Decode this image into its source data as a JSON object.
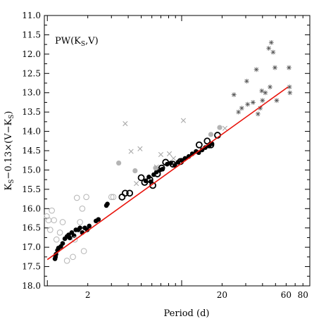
{
  "chart_data": {
    "type": "scatter",
    "panel_label": "PW(K",
    "panel_label_sub": "S",
    "panel_label_tail": ",V)",
    "xlabel": "Period (d)",
    "ylabel_parts": {
      "a": "K",
      "a_sub": "S",
      "b": "−0.13×(V−K",
      "b_sub": "S",
      "c": ")"
    },
    "x_scale": "log",
    "xlim": [
      0.95,
      90
    ],
    "ylim": [
      18.0,
      11.0
    ],
    "y_inverted": true,
    "x_ticks": [
      {
        "value": 2,
        "label": "2"
      },
      {
        "value": 20,
        "label": "20"
      },
      {
        "value": 60,
        "label": "60"
      },
      {
        "value": 80,
        "label": "80"
      }
    ],
    "y_ticks": [
      "11.0",
      "11.5",
      "12.0",
      "12.5",
      "13.0",
      "13.5",
      "14.0",
      "14.5",
      "15.0",
      "15.5",
      "16.0",
      "16.5",
      "17.0",
      "17.5",
      "18.0"
    ],
    "colors": {
      "fit_line": "#e8140c",
      "filled": "#000000",
      "open": "#000000",
      "gray": "#b4b4b4",
      "cross": "#aaaaaa",
      "star": "#555555"
    },
    "fit_line": {
      "x": [
        1.0,
        62.0
      ],
      "y": [
        17.32,
        12.85
      ]
    },
    "series": [
      {
        "marker": "filled-circle",
        "points": [
          [
            1.14,
            17.3
          ],
          [
            1.15,
            17.25
          ],
          [
            1.16,
            17.18
          ],
          [
            1.19,
            17.08
          ],
          [
            1.21,
            17.02
          ],
          [
            1.26,
            16.98
          ],
          [
            1.3,
            16.9
          ],
          [
            1.35,
            16.78
          ],
          [
            1.4,
            16.72
          ],
          [
            1.44,
            16.68
          ],
          [
            1.47,
            16.76
          ],
          [
            1.52,
            16.62
          ],
          [
            1.58,
            16.7
          ],
          [
            1.63,
            16.55
          ],
          [
            1.7,
            16.55
          ],
          [
            1.75,
            16.5
          ],
          [
            1.82,
            16.62
          ],
          [
            1.9,
            16.5
          ],
          [
            1.98,
            16.55
          ],
          [
            2.05,
            16.45
          ],
          [
            2.3,
            16.32
          ],
          [
            2.4,
            16.28
          ],
          [
            2.75,
            15.92
          ],
          [
            2.8,
            15.88
          ],
          [
            5.4,
            15.28
          ],
          [
            5.7,
            15.18
          ],
          [
            5.9,
            15.3
          ],
          [
            6.2,
            15.12
          ],
          [
            6.5,
            15.05
          ],
          [
            6.9,
            15.0
          ],
          [
            7.2,
            14.98
          ],
          [
            7.8,
            14.85
          ],
          [
            8.3,
            14.82
          ],
          [
            8.9,
            14.88
          ],
          [
            9.4,
            14.8
          ],
          [
            10.0,
            14.75
          ],
          [
            10.6,
            14.7
          ],
          [
            11.3,
            14.65
          ],
          [
            12.0,
            14.58
          ],
          [
            12.8,
            14.52
          ],
          [
            13.4,
            14.55
          ],
          [
            14.2,
            14.48
          ],
          [
            15.0,
            14.42
          ],
          [
            16.0,
            14.38
          ],
          [
            16.8,
            14.32
          ]
        ]
      },
      {
        "marker": "open-circle",
        "points": [
          [
            3.6,
            15.7
          ],
          [
            3.8,
            15.6
          ],
          [
            4.1,
            15.6
          ],
          [
            5.0,
            15.2
          ],
          [
            5.3,
            15.32
          ],
          [
            5.8,
            15.25
          ],
          [
            6.1,
            15.4
          ],
          [
            6.6,
            15.1
          ],
          [
            7.1,
            14.95
          ],
          [
            7.6,
            14.8
          ],
          [
            8.6,
            14.85
          ],
          [
            9.8,
            14.78
          ],
          [
            13.5,
            14.35
          ],
          [
            15.5,
            14.25
          ],
          [
            16.5,
            14.35
          ],
          [
            18.5,
            14.1
          ]
        ]
      },
      {
        "marker": "gray-open-circle",
        "points": [
          [
            0.99,
            16.2
          ],
          [
            1.02,
            16.3
          ],
          [
            1.05,
            16.55
          ],
          [
            1.08,
            16.05
          ],
          [
            1.12,
            16.3
          ],
          [
            1.17,
            16.8
          ],
          [
            1.24,
            16.62
          ],
          [
            1.3,
            16.35
          ],
          [
            1.4,
            17.35
          ],
          [
            1.55,
            17.25
          ],
          [
            1.6,
            16.8
          ],
          [
            1.66,
            15.72
          ],
          [
            1.75,
            16.35
          ],
          [
            1.82,
            16.0
          ],
          [
            1.87,
            17.1
          ],
          [
            1.95,
            15.7
          ],
          [
            3.0,
            15.7
          ],
          [
            3.1,
            15.7
          ]
        ]
      },
      {
        "marker": "gray-filled-circle",
        "points": [
          [
            3.4,
            14.82
          ],
          [
            4.5,
            15.02
          ],
          [
            6.4,
            14.95
          ],
          [
            16.5,
            14.08
          ],
          [
            19.2,
            13.9
          ]
        ]
      },
      {
        "marker": "gray-cross",
        "points": [
          [
            3.8,
            13.8
          ],
          [
            4.2,
            14.52
          ],
          [
            4.6,
            15.35
          ],
          [
            4.9,
            14.45
          ],
          [
            6.5,
            14.92
          ],
          [
            7.0,
            14.6
          ],
          [
            8.1,
            14.58
          ],
          [
            8.7,
            14.7
          ],
          [
            10.3,
            13.72
          ],
          [
            21.0,
            13.92
          ]
        ]
      },
      {
        "marker": "star",
        "points": [
          [
            24.5,
            13.05
          ],
          [
            26.5,
            13.5
          ],
          [
            28.0,
            13.4
          ],
          [
            30.5,
            12.7
          ],
          [
            31.0,
            13.3
          ],
          [
            34.0,
            13.25
          ],
          [
            36.0,
            12.4
          ],
          [
            37.0,
            13.55
          ],
          [
            38.5,
            13.4
          ],
          [
            39.5,
            12.95
          ],
          [
            40.0,
            13.2
          ],
          [
            42.0,
            13.0
          ],
          [
            44.5,
            11.85
          ],
          [
            45.5,
            12.85
          ],
          [
            46.5,
            11.7
          ],
          [
            48.0,
            11.95
          ],
          [
            49.5,
            12.35
          ],
          [
            51.0,
            13.2
          ],
          [
            63.0,
            12.35
          ],
          [
            63.5,
            12.85
          ],
          [
            64.0,
            13.0
          ]
        ]
      }
    ]
  }
}
